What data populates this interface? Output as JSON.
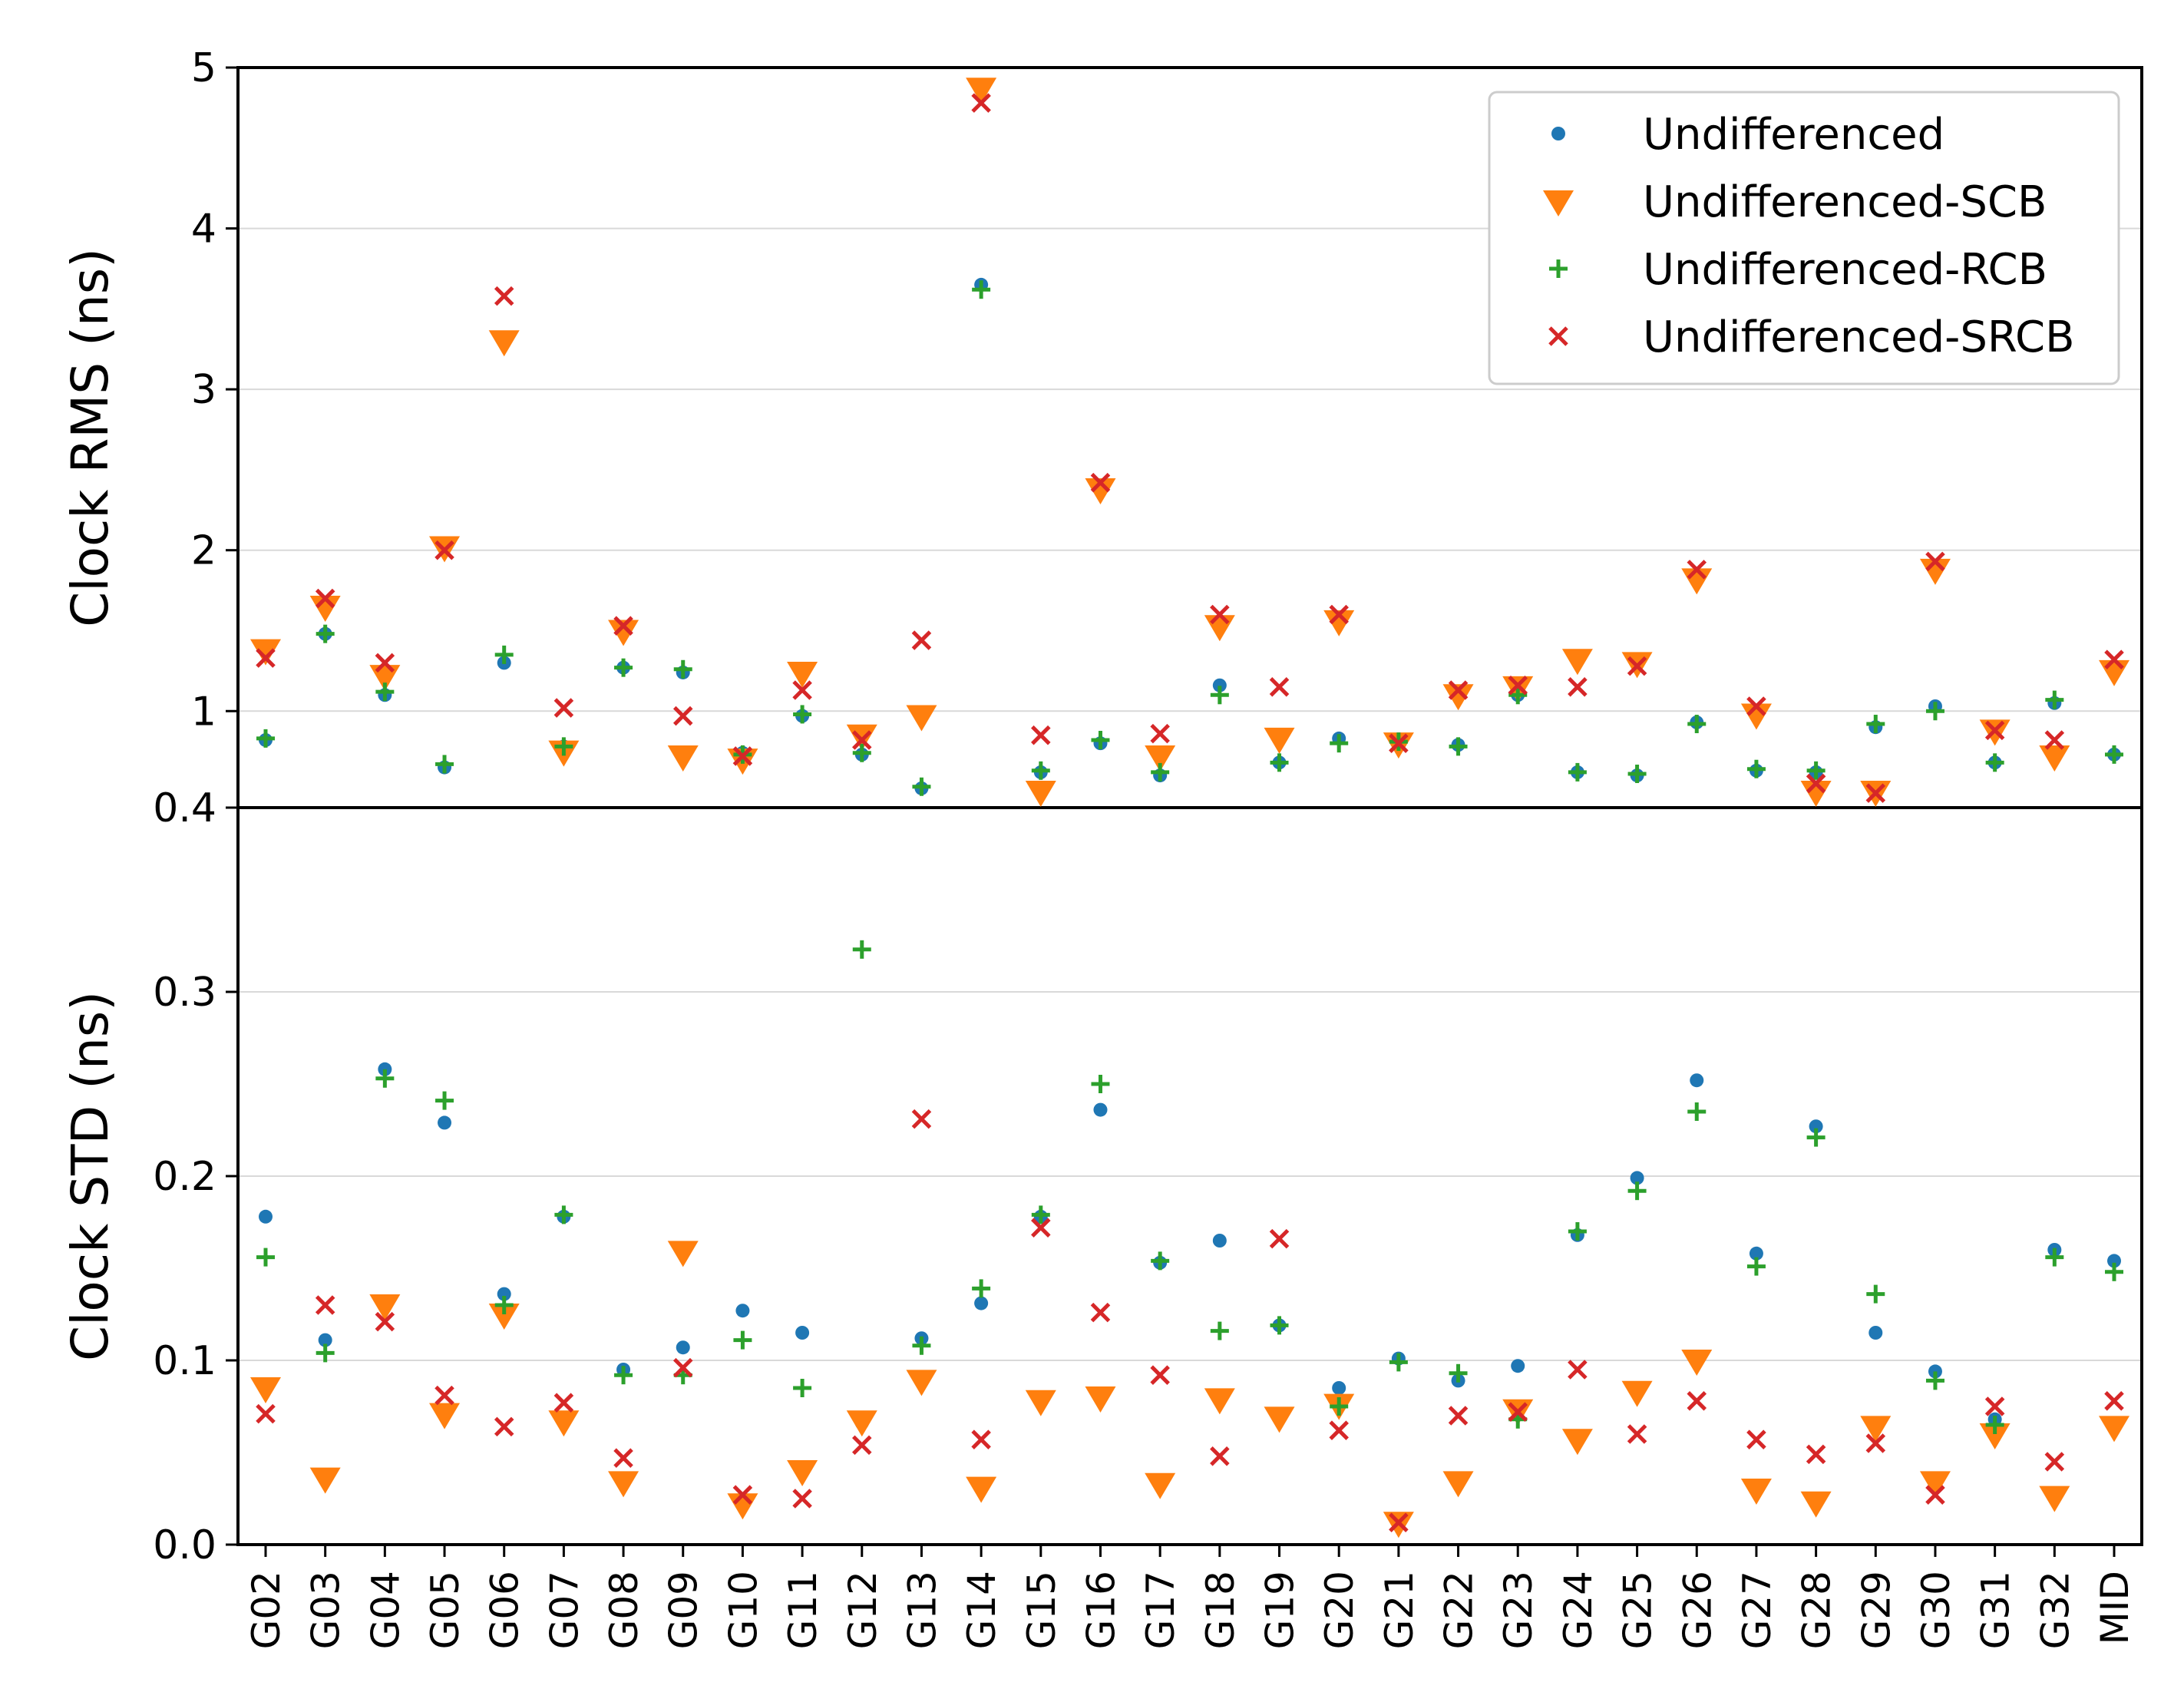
{
  "chart_data": {
    "type": "scatter",
    "categories": [
      "G02",
      "G03",
      "G04",
      "G05",
      "G06",
      "G07",
      "G08",
      "G09",
      "G10",
      "G11",
      "G12",
      "G13",
      "G14",
      "G15",
      "G16",
      "G17",
      "G18",
      "G19",
      "G20",
      "G21",
      "G22",
      "G23",
      "G24",
      "G25",
      "G26",
      "G27",
      "G28",
      "G29",
      "G30",
      "G31",
      "G32",
      "MID"
    ],
    "legend": {
      "placement": "top-right",
      "entries": [
        "Undifferenced",
        "Undifferenced-SCB",
        "Undifferenced-RCB",
        "Undifferenced-SRCB"
      ]
    },
    "panels": [
      {
        "name": "rms",
        "ylabel": "Clock RMS (ns)",
        "ylim": [
          0.4,
          5
        ],
        "yticks": [
          0.4,
          1,
          2,
          3,
          4,
          5
        ],
        "ytick_labels": [
          "0.4",
          "1",
          "2",
          "3",
          "4",
          "5"
        ],
        "grid": true,
        "series": [
          {
            "name": "Undifferenced",
            "values": [
              0.82,
              1.48,
              1.1,
              0.65,
              1.3,
              0.78,
              1.27,
              1.24,
              0.74,
              0.97,
              0.73,
              0.52,
              3.65,
              0.62,
              0.8,
              0.6,
              1.16,
              0.68,
              0.83,
              0.8,
              0.79,
              1.1,
              0.62,
              0.6,
              0.93,
              0.63,
              0.62,
              0.9,
              1.03,
              0.68,
              1.05,
              0.73
            ]
          },
          {
            "name": "Undifferenced-SCB",
            "values": [
              1.38,
              1.65,
              1.22,
              2.02,
              3.3,
              0.75,
              1.5,
              0.72,
              0.7,
              1.24,
              0.85,
              0.97,
              4.87,
              0.5,
              2.38,
              0.72,
              1.53,
              0.83,
              1.56,
              0.8,
              1.1,
              1.15,
              1.32,
              1.3,
              1.82,
              0.98,
              0.5,
              0.5,
              1.88,
              0.88,
              0.72,
              1.25
            ]
          },
          {
            "name": "Undifferenced-RCB",
            "values": [
              0.83,
              1.48,
              1.12,
              0.67,
              1.35,
              0.78,
              1.27,
              1.26,
              0.73,
              0.98,
              0.74,
              0.53,
              3.62,
              0.63,
              0.82,
              0.62,
              1.1,
              0.68,
              0.8,
              0.81,
              0.78,
              1.1,
              0.62,
              0.61,
              0.92,
              0.64,
              0.63,
              0.92,
              1.0,
              0.68,
              1.07,
              0.73
            ]
          },
          {
            "name": "Undifferenced-SRCB",
            "values": [
              1.33,
              1.7,
              1.3,
              2.0,
              3.58,
              1.02,
              1.53,
              0.97,
              0.72,
              1.13,
              0.82,
              1.44,
              4.78,
              0.85,
              2.42,
              0.86,
              1.6,
              1.15,
              1.6,
              0.8,
              1.13,
              1.16,
              1.15,
              1.28,
              1.88,
              1.03,
              0.55,
              0.49,
              1.93,
              0.88,
              0.82,
              1.32
            ]
          }
        ]
      },
      {
        "name": "std",
        "ylabel": "Clock STD (ns)",
        "ylim": [
          0.0,
          0.4
        ],
        "yticks": [
          0.0,
          0.1,
          0.2,
          0.3
        ],
        "ytick_labels": [
          "0.0",
          "0.1",
          "0.2",
          "0.3"
        ],
        "grid": true,
        "series": [
          {
            "name": "Undifferenced",
            "values": [
              0.178,
              0.111,
              0.258,
              0.229,
              0.136,
              0.178,
              0.095,
              0.107,
              0.127,
              0.115,
              0.066,
              0.112,
              0.131,
              0.178,
              0.236,
              0.153,
              0.165,
              0.119,
              0.085,
              0.101,
              0.089,
              0.097,
              0.168,
              0.199,
              0.252,
              0.158,
              0.227,
              0.115,
              0.094,
              0.068,
              0.16,
              0.154
            ]
          },
          {
            "name": "Undifferenced-SCB",
            "values": [
              0.085,
              0.036,
              0.13,
              0.071,
              0.125,
              0.067,
              0.034,
              0.159,
              0.022,
              0.04,
              0.067,
              0.089,
              0.031,
              0.078,
              0.08,
              0.033,
              0.079,
              0.069,
              0.076,
              0.012,
              0.034,
              0.073,
              0.057,
              0.083,
              0.1,
              0.03,
              0.023,
              0.064,
              0.034,
              0.06,
              0.026,
              0.064
            ]
          },
          {
            "name": "Undifferenced-RCB",
            "values": [
              0.156,
              0.104,
              0.253,
              0.241,
              0.13,
              0.179,
              0.092,
              0.092,
              0.111,
              0.085,
              0.323,
              0.108,
              0.139,
              0.179,
              0.25,
              0.154,
              0.116,
              0.119,
              0.075,
              0.099,
              0.093,
              0.068,
              0.17,
              0.192,
              0.235,
              0.151,
              0.221,
              0.136,
              0.089,
              0.065,
              0.156,
              0.148
            ]
          },
          {
            "name": "Undifferenced-SRCB",
            "values": [
              0.071,
              0.13,
              0.121,
              0.081,
              0.064,
              0.077,
              0.047,
              0.096,
              0.027,
              0.025,
              0.054,
              0.231,
              0.057,
              0.172,
              0.126,
              0.092,
              0.048,
              0.166,
              0.062,
              0.012,
              0.07,
              0.072,
              0.095,
              0.06,
              0.078,
              0.057,
              0.049,
              0.055,
              0.027,
              0.075,
              0.045,
              0.078
            ]
          }
        ]
      }
    ]
  },
  "style": {
    "colors": [
      "#1f77b4",
      "#ff7f0e",
      "#2ca02c",
      "#d62728"
    ],
    "markers": [
      "dot",
      "triangle-down",
      "plus",
      "x"
    ],
    "grid_color": "#d9d9d9"
  }
}
